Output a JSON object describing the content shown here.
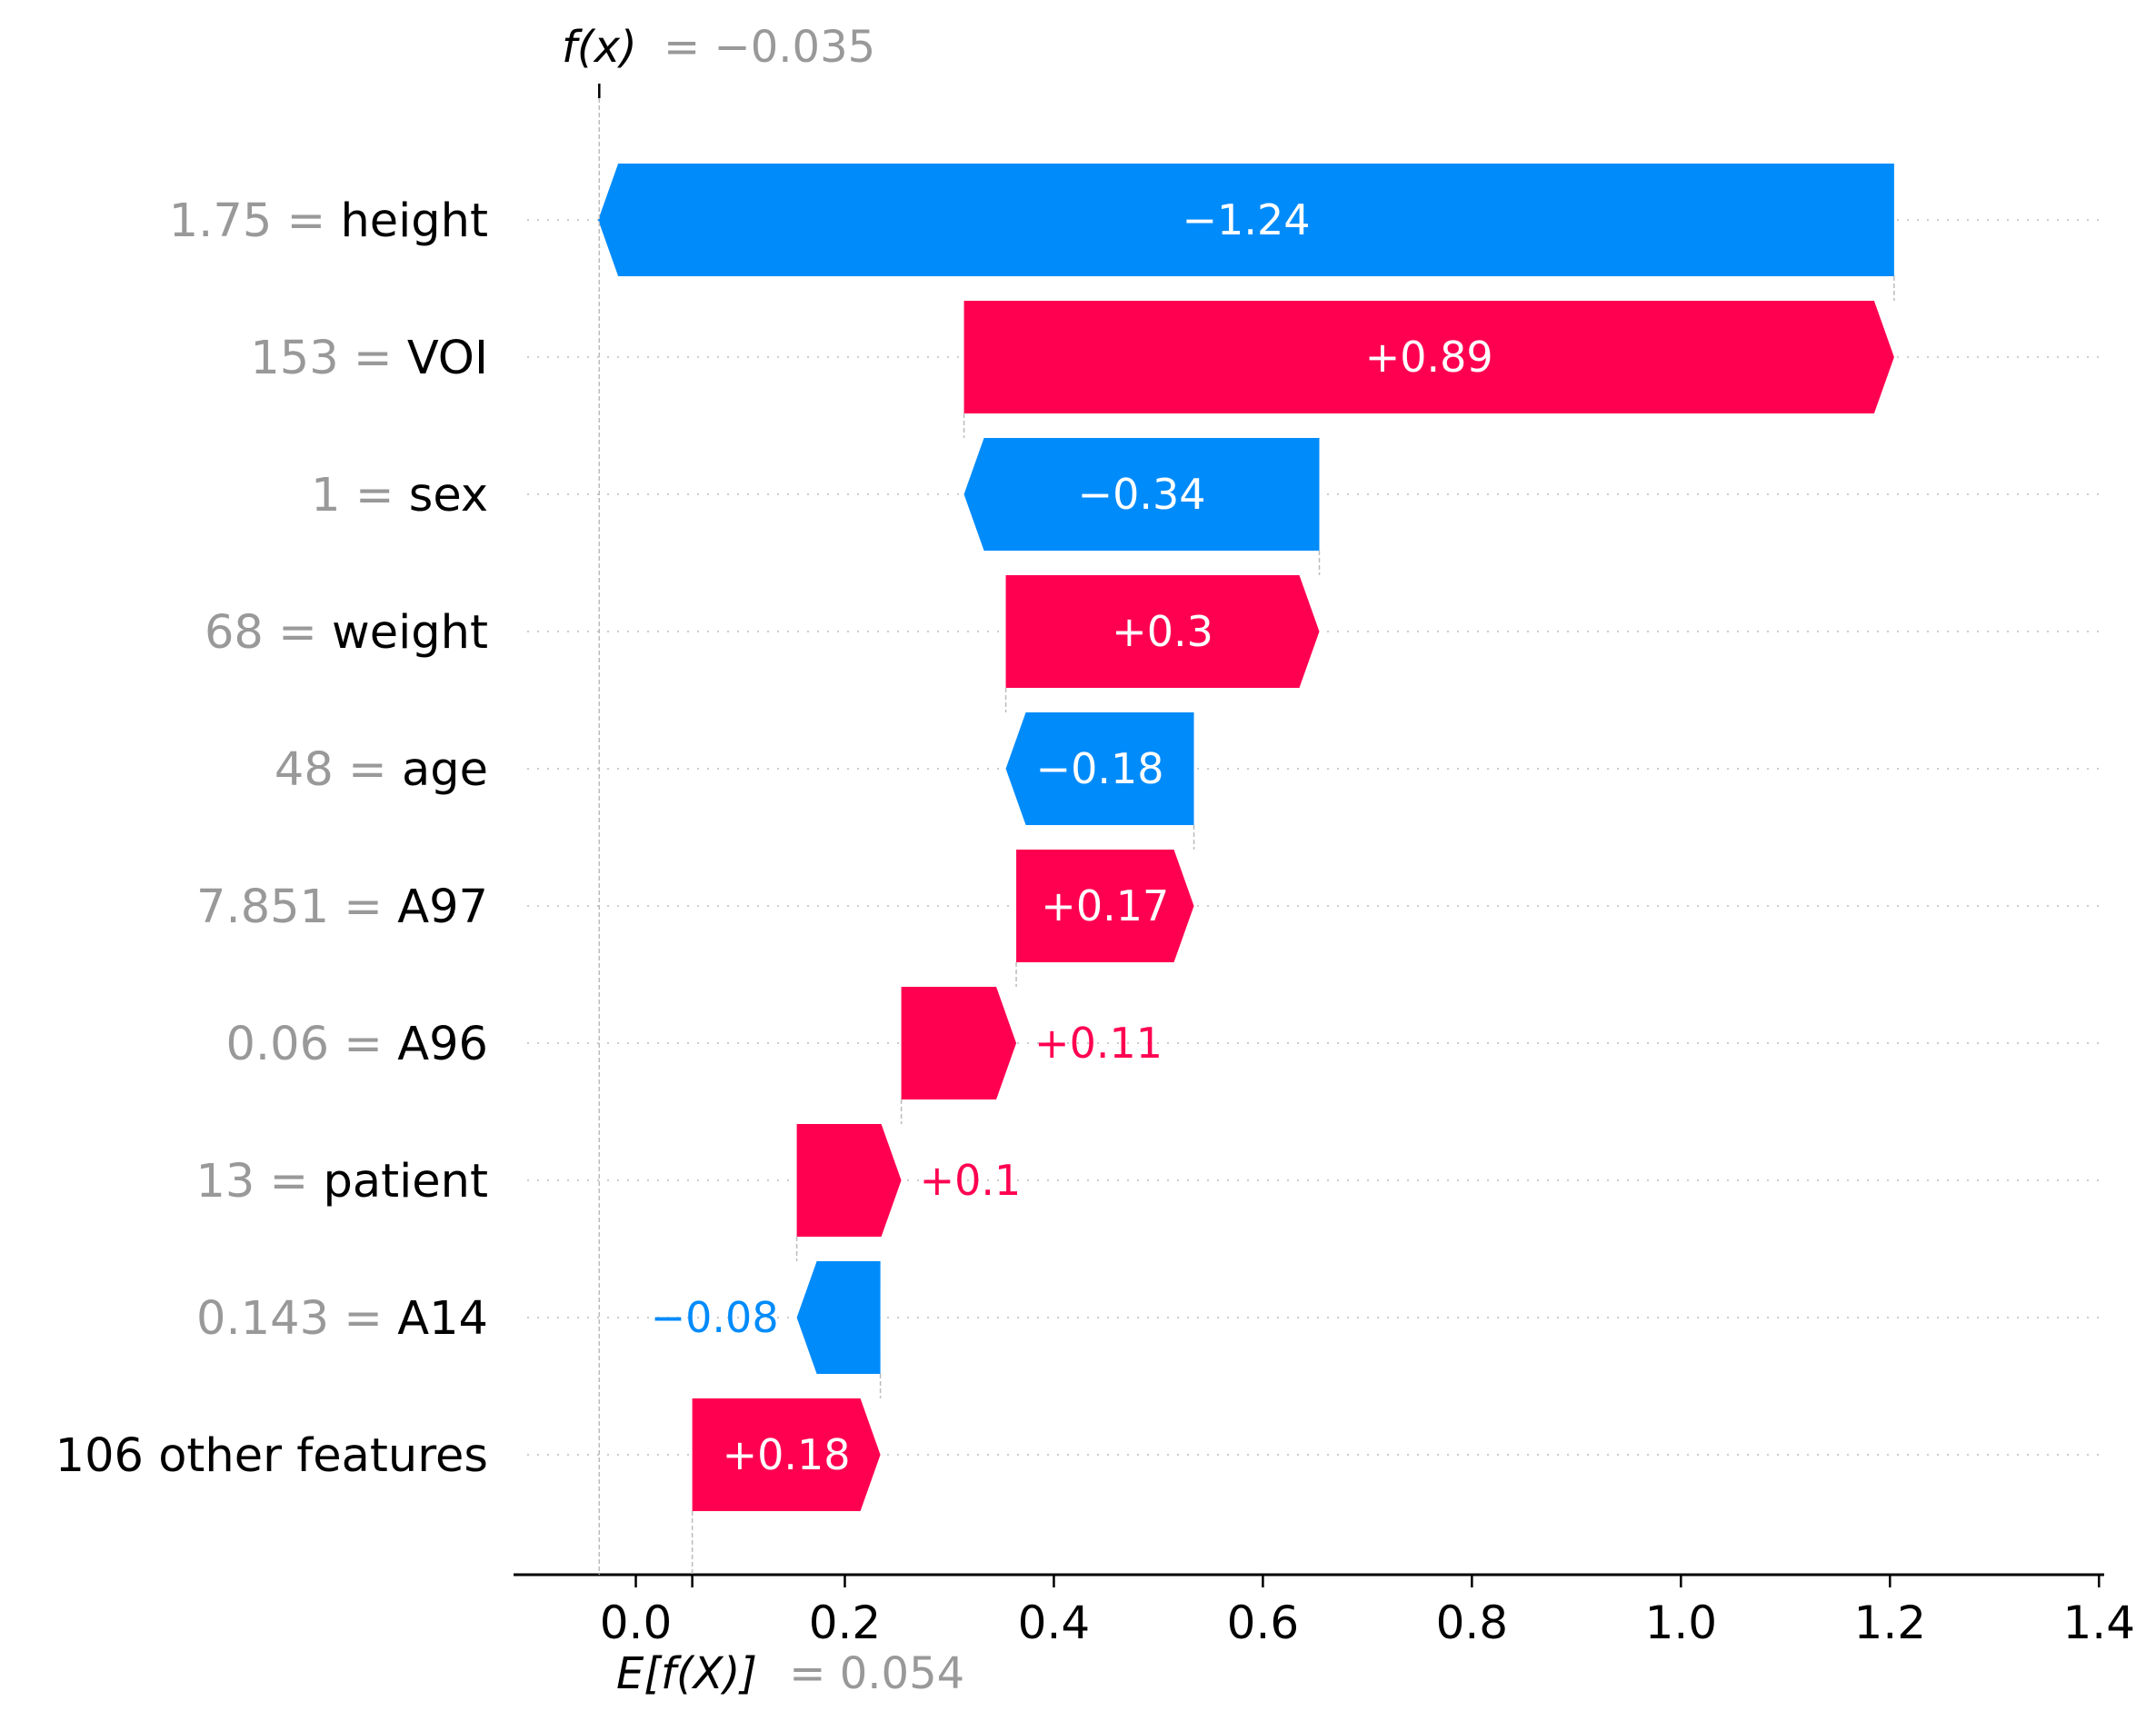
{
  "chart_data": {
    "type": "bar",
    "subtype": "waterfall",
    "orientation": "horizontal",
    "base_value": 0.054,
    "output_value": -0.035,
    "base_label": "E[f(X)]",
    "base_value_text": "= 0.054",
    "output_label": "f(x)",
    "output_value_text": "= −0.035",
    "xlim": [
      -0.117,
      1.405
    ],
    "x_ticks": [
      {
        "value": 0.0,
        "label": "0.0"
      },
      {
        "value": 0.2,
        "label": "0.2"
      },
      {
        "value": 0.4,
        "label": "0.4"
      },
      {
        "value": 0.6,
        "label": "0.6"
      },
      {
        "value": 0.8,
        "label": "0.8"
      },
      {
        "value": 1.0,
        "label": "1.0"
      },
      {
        "value": 1.2,
        "label": "1.2"
      },
      {
        "value": 1.4,
        "label": "1.4"
      }
    ],
    "features": [
      {
        "value": "1.75",
        "name": "height",
        "contribution": -1.24,
        "label": "−1.24"
      },
      {
        "value": "153",
        "name": "VOI",
        "contribution": 0.89,
        "label": "+0.89"
      },
      {
        "value": "1",
        "name": "sex",
        "contribution": -0.34,
        "label": "−0.34"
      },
      {
        "value": "68",
        "name": "weight",
        "contribution": 0.3,
        "label": "+0.3"
      },
      {
        "value": "48",
        "name": "age",
        "contribution": -0.18,
        "label": "−0.18"
      },
      {
        "value": "7.851",
        "name": "A97",
        "contribution": 0.17,
        "label": "+0.17"
      },
      {
        "value": "0.06",
        "name": "A96",
        "contribution": 0.11,
        "label": "+0.11"
      },
      {
        "value": "13",
        "name": "patient",
        "contribution": 0.1,
        "label": "+0.1"
      },
      {
        "value": "0.143",
        "name": "A14",
        "contribution": -0.08,
        "label": "−0.08"
      },
      {
        "value": "",
        "name": "106 other features",
        "contribution": 0.18,
        "label": "+0.18"
      }
    ],
    "colors": {
      "positive": "#ff0051",
      "negative": "#008bfb",
      "feature_value": "#999999",
      "axis": "#000000",
      "guide": "#bbbbbb"
    },
    "grid": false
  }
}
